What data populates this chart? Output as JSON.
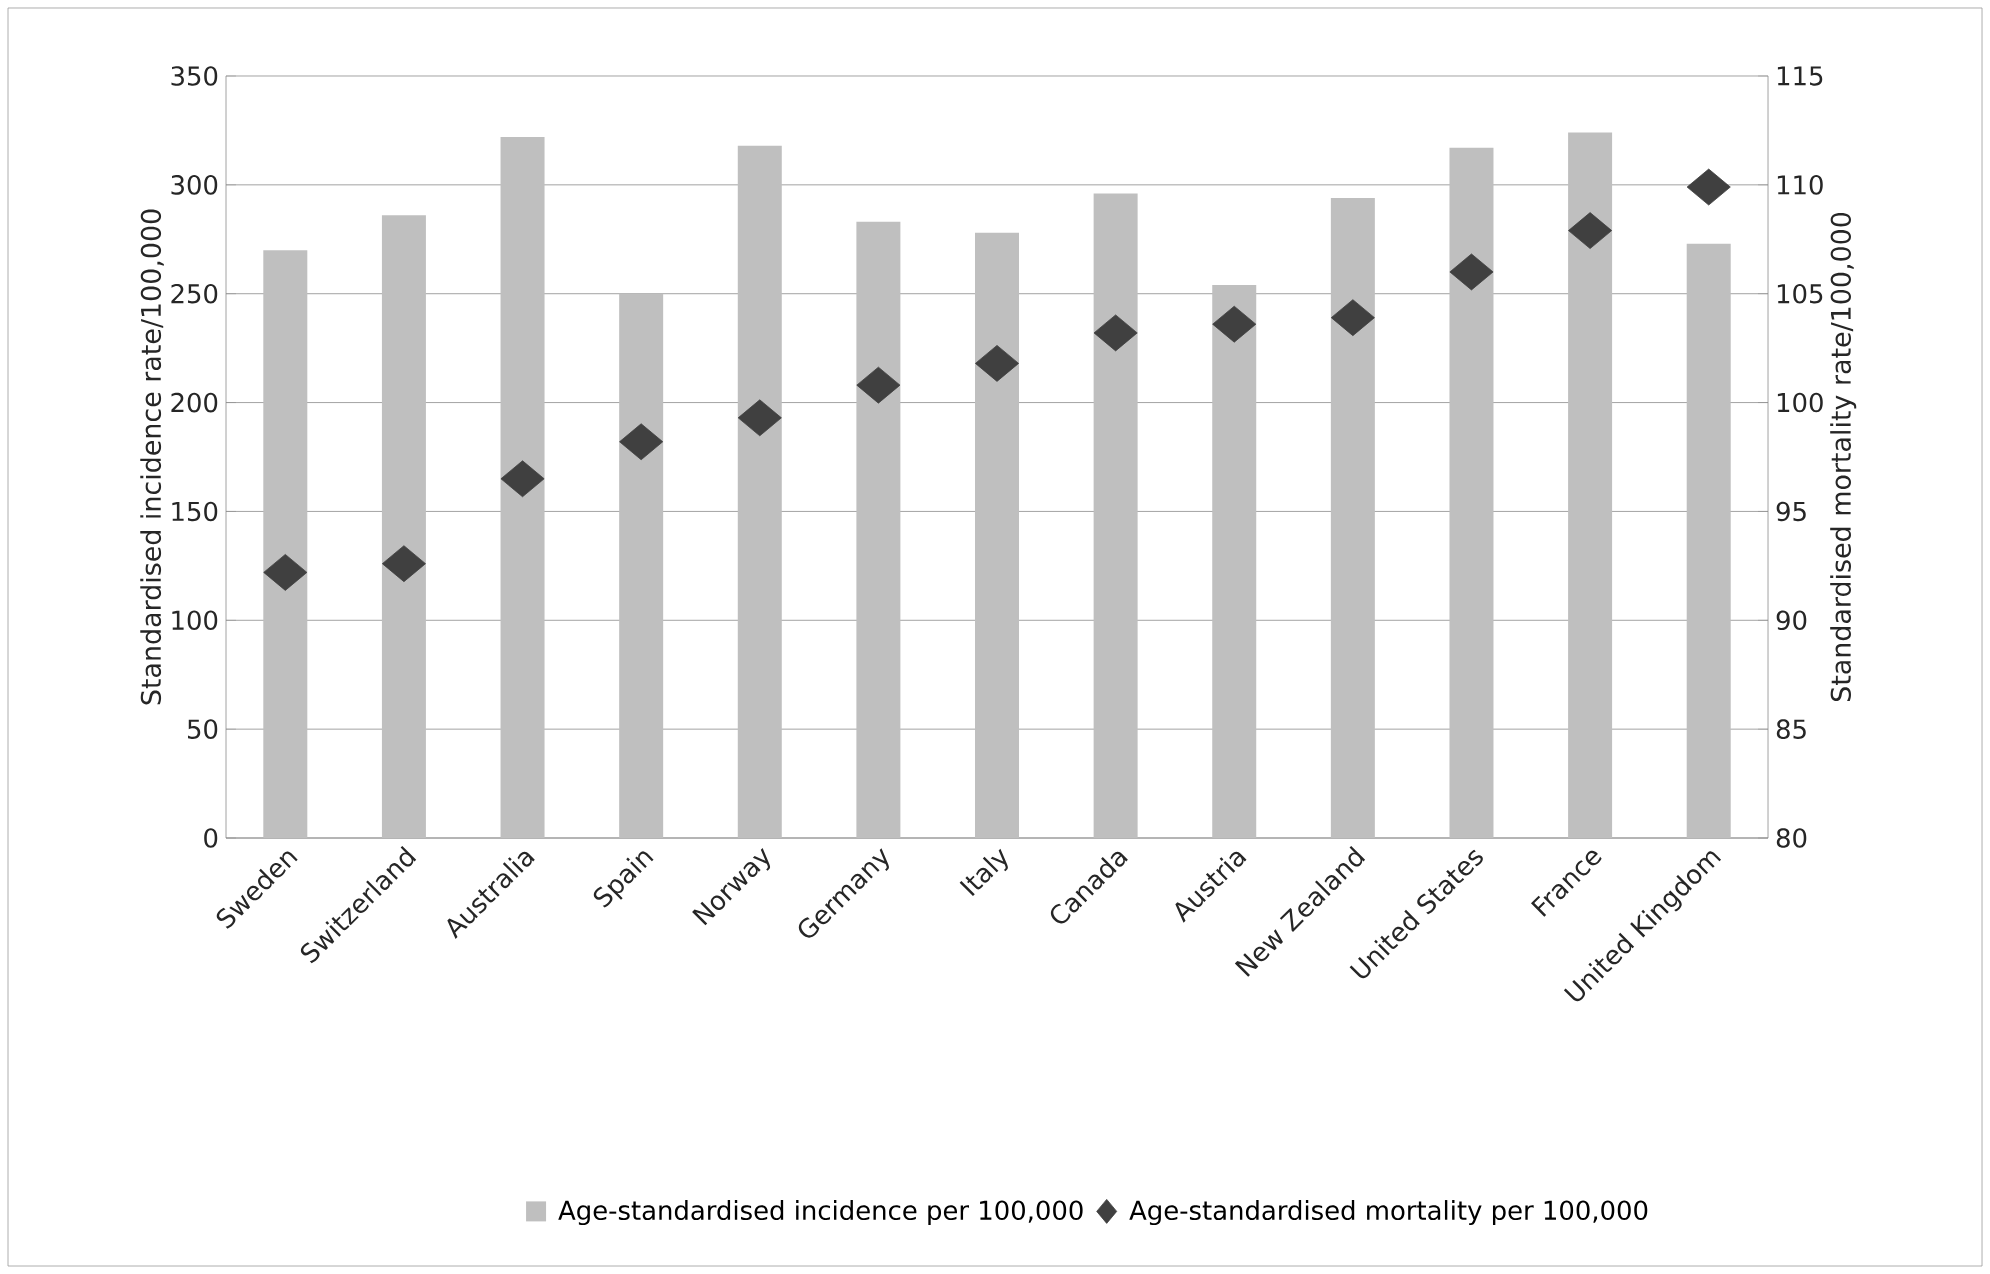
{
  "chart_data": {
    "type": "bar",
    "categories": [
      "Sweden",
      "Switzerland",
      "Australia",
      "Spain",
      "Norway",
      "Germany",
      "Italy",
      "Canada",
      "Austria",
      "New Zealand",
      "United States",
      "France",
      "United Kingdom"
    ],
    "series": [
      {
        "name": "Age-standardised incidence per 100,000",
        "color": "#bfbfbf",
        "values": [
          270,
          286,
          322,
          250,
          318,
          283,
          278,
          296,
          254,
          294,
          317,
          324,
          273
        ]
      },
      {
        "name": "Age-standardised mortality per 100,000",
        "type": "scatter",
        "axis": "y2",
        "marker": "diamond",
        "color": "#404040",
        "values": [
          92.2,
          92.6,
          96.5,
          98.2,
          99.3,
          100.8,
          101.8,
          103.2,
          103.6,
          103.9,
          106.0,
          107.9,
          109.9
        ]
      }
    ],
    "ylabel": "Standardised incidence rate/100,000",
    "y2label": "Standardised mortality rate/100,000",
    "ylim": [
      0,
      350
    ],
    "yticks": [
      0,
      50,
      100,
      150,
      200,
      250,
      300,
      350
    ],
    "y2lim": [
      80,
      115
    ],
    "y2ticks": [
      80,
      85,
      90,
      95,
      100,
      105,
      110,
      115
    ],
    "grid": "y",
    "legend": "bottom"
  }
}
